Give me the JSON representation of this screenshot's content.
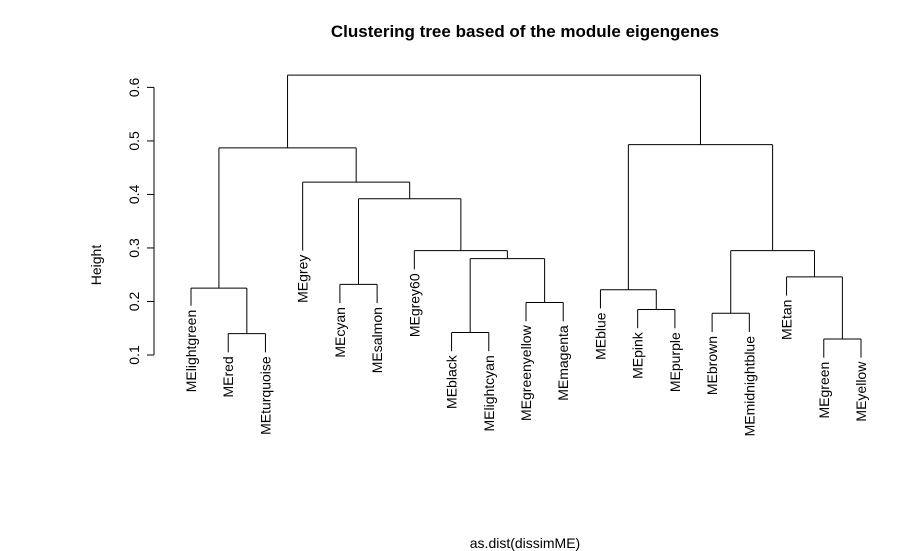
{
  "chart_data": {
    "type": "dendrogram",
    "title": "Clustering tree based of the module eigengenes",
    "xlabel": "as.dist(dissimME)",
    "ylabel": "Height",
    "ylim": [
      0.1,
      0.6
    ],
    "yticks": [
      0.1,
      0.2,
      0.3,
      0.4,
      0.5,
      0.6
    ],
    "ytick_labels": [
      "0.1",
      "0.2",
      "0.3",
      "0.4",
      "0.5",
      "0.6"
    ],
    "leaves": [
      "MElightgreen",
      "MEred",
      "MEturquoise",
      "MEgrey",
      "MEcyan",
      "MEsalmon",
      "MEgrey60",
      "MEblack",
      "MElightcyan",
      "MEgreenyellow",
      "MEmagenta",
      "MEblue",
      "MEpink",
      "MEpurple",
      "MEbrown",
      "MEmidnightblue",
      "MEtan",
      "MEgreen",
      "MEyellow"
    ],
    "merges": [
      {
        "left": "MEred",
        "right": "MEturquoise",
        "height": 0.14
      },
      {
        "left": "MElightgreen",
        "right": "merge:0",
        "height": 0.225
      },
      {
        "left": "MEcyan",
        "right": "MEsalmon",
        "height": 0.232
      },
      {
        "left": "MEblack",
        "right": "MElightcyan",
        "height": 0.142
      },
      {
        "left": "MEgreenyellow",
        "right": "MEmagenta",
        "height": 0.198
      },
      {
        "left": "merge:3",
        "right": "merge:4",
        "height": 0.28
      },
      {
        "left": "MEgrey60",
        "right": "merge:5",
        "height": 0.295
      },
      {
        "left": "merge:2",
        "right": "merge:6",
        "height": 0.392
      },
      {
        "left": "MEgrey",
        "right": "merge:7",
        "height": 0.423
      },
      {
        "left": "merge:1",
        "right": "merge:8",
        "height": 0.487
      },
      {
        "left": "MEpink",
        "right": "MEpurple",
        "height": 0.185
      },
      {
        "left": "MEblue",
        "right": "merge:10",
        "height": 0.222
      },
      {
        "left": "MEbrown",
        "right": "MEmidnightblue",
        "height": 0.178
      },
      {
        "left": "MEgreen",
        "right": "MEyellow",
        "height": 0.13
      },
      {
        "left": "MEtan",
        "right": "merge:13",
        "height": 0.246
      },
      {
        "left": "merge:12",
        "right": "merge:14",
        "height": 0.295
      },
      {
        "left": "merge:11",
        "right": "merge:15",
        "height": 0.493
      },
      {
        "left": "merge:9",
        "right": "merge:16",
        "height": 0.623
      }
    ],
    "leaf_heights": {
      "MElightgreen": 0.192,
      "MEred": 0.105,
      "MEturquoise": 0.105,
      "MEgrey": 0.295,
      "MEcyan": 0.197,
      "MEsalmon": 0.197,
      "MEgrey60": 0.26,
      "MEblack": 0.107,
      "MElightcyan": 0.107,
      "MEgreenyellow": 0.163,
      "MEmagenta": 0.163,
      "MEblue": 0.187,
      "MEpink": 0.15,
      "MEpurple": 0.15,
      "MEbrown": 0.143,
      "MEmidnightblue": 0.143,
      "MEtan": 0.211,
      "MEgreen": 0.095,
      "MEyellow": 0.095
    }
  }
}
